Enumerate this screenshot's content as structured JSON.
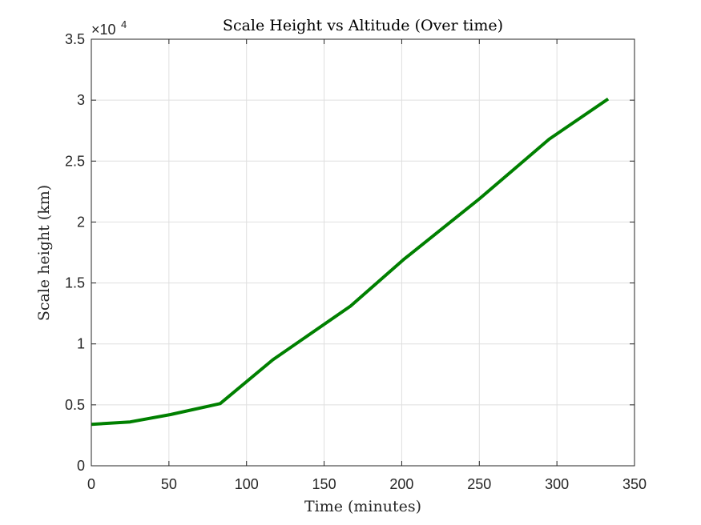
{
  "chart_data": {
    "type": "line",
    "title": "Scale Height vs Altitude (Over time)",
    "xlabel": "Time (minutes)",
    "ylabel": "Scale height (km)",
    "xlim": [
      0,
      350
    ],
    "ylim": [
      0,
      35000
    ],
    "x_ticks": [
      0,
      50,
      100,
      150,
      200,
      250,
      300,
      350
    ],
    "y_ticks": [
      0,
      5000,
      10000,
      15000,
      20000,
      25000,
      30000,
      35000
    ],
    "y_tick_labels": [
      "0",
      "0.5",
      "1",
      "1.5",
      "2",
      "2.5",
      "3",
      "3.5"
    ],
    "y_exponent": {
      "base": "×10",
      "power": "4"
    },
    "grid": true,
    "series": [
      {
        "color": "#008000",
        "x": [
          0,
          25,
          51,
          83,
          117,
          167,
          201,
          250,
          295,
          333
        ],
        "y": [
          3400,
          3600,
          4200,
          5100,
          8700,
          13100,
          16900,
          21900,
          26800,
          30100
        ]
      }
    ]
  }
}
